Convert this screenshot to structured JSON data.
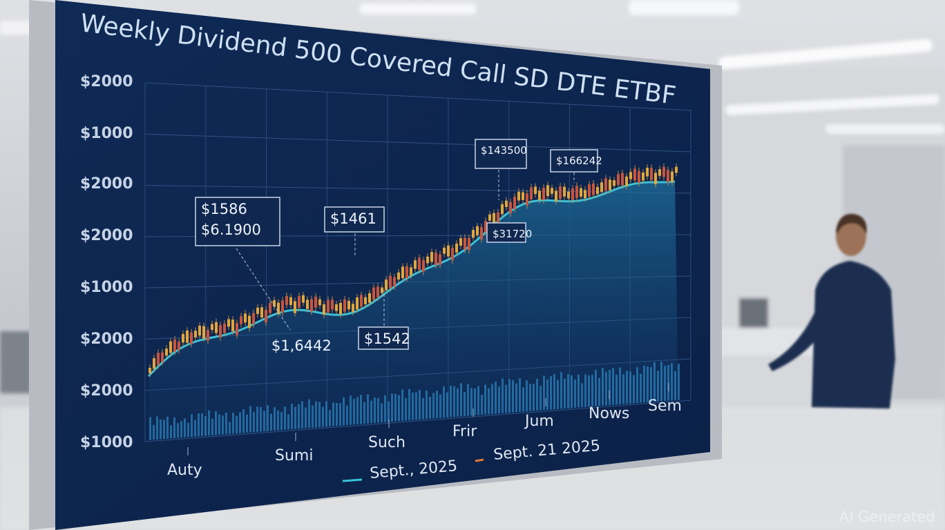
{
  "screen": {
    "title": "Weekly Dividend 500 Covered Call SD DTE ETBF",
    "y_labels": [
      "$2000",
      "$1000",
      "$2000",
      "$2000",
      "$1000",
      "$2000",
      "$2000",
      "$1000"
    ],
    "x_labels": [
      "Auty",
      "Sumi",
      "Such",
      "Frir",
      "Jum",
      "Nows",
      "Sem"
    ],
    "annotations": [
      {
        "lines": [
          "$1586",
          "$6.1900"
        ]
      },
      {
        "lines": [
          "$1461"
        ]
      },
      {
        "lines": [
          "$143500"
        ]
      },
      {
        "lines": [
          "$166242"
        ]
      },
      {
        "lines": [
          "$31720"
        ]
      },
      {
        "lines": [
          "$1,6442"
        ]
      },
      {
        "lines": [
          "$1542"
        ]
      }
    ],
    "legend": [
      "Sept., 2025",
      "Sept. 21 2025"
    ]
  },
  "watermark": "AI Generated"
}
